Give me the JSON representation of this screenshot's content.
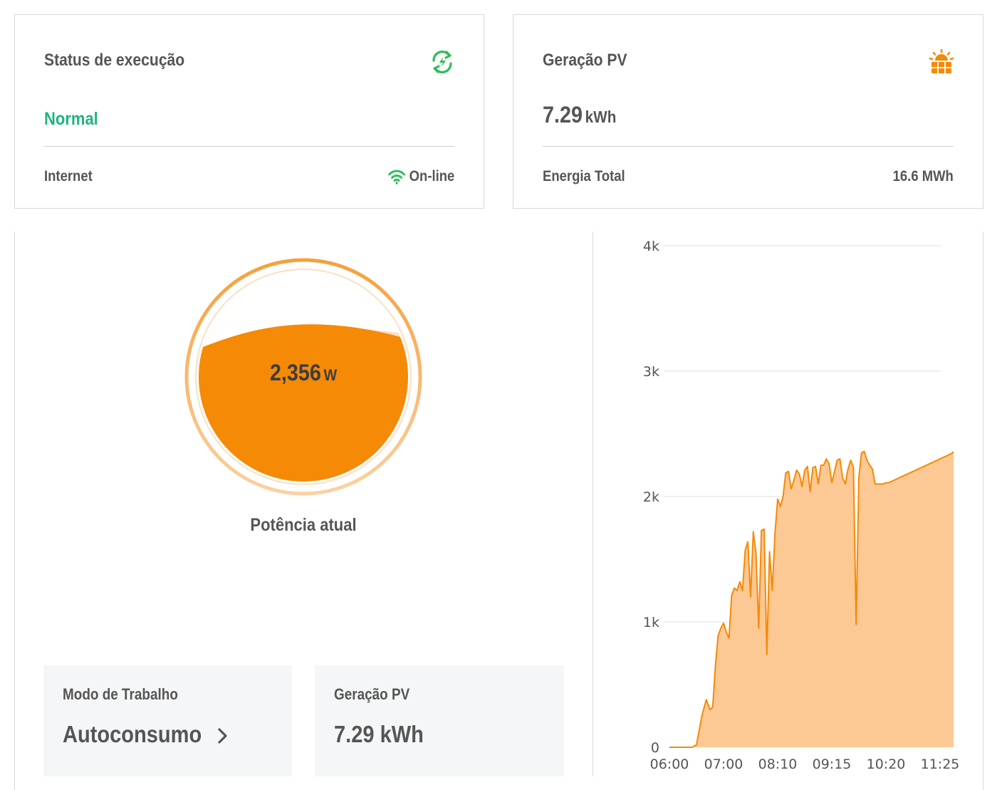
{
  "status_card": {
    "title": "Status de execução",
    "icon": "refresh-sync-icon",
    "status": "Normal",
    "internet_label": "Internet",
    "internet_icon": "wifi-icon",
    "internet_value": "On-line",
    "colors": {
      "status": "#1fb37e",
      "icon": "#2ebd59"
    }
  },
  "pv_card": {
    "title": "Geração PV",
    "icon": "solar-panel-icon",
    "value": "7.29",
    "unit": "kWh",
    "total_label": "Energia Total",
    "total_value": "16.6 MWh",
    "colors": {
      "icon": "#f58a07"
    }
  },
  "gauge": {
    "value": "2,356",
    "unit": "W",
    "label": "Potência atual",
    "fill_fraction": 0.72,
    "colors": {
      "fill": "#f58a07",
      "ring": "#f7b062"
    }
  },
  "tiles": [
    {
      "label": "Modo de Trabalho",
      "value": "Autoconsumo",
      "icon": "chevron-right-icon"
    },
    {
      "label": "Geração PV",
      "value": "7.29 kWh"
    }
  ],
  "chart_data": {
    "type": "area",
    "yticks": [
      "0",
      "1k",
      "2k",
      "3k",
      "4k"
    ],
    "ylim": [
      0,
      4000
    ],
    "xticks": [
      "06:00",
      "07:00",
      "08:10",
      "09:15",
      "10:20",
      "11:25"
    ],
    "colors": {
      "line": "#f58a07",
      "fill": "#fcc894",
      "grid": "#e2e2e2"
    },
    "series": [
      {
        "x": [
          0,
          0.05,
          0.2,
          0.35,
          0.42,
          0.5,
          0.6,
          0.68,
          0.75,
          0.8,
          0.85,
          0.9,
          0.95,
          1.0,
          1.05,
          1.1,
          1.15,
          1.2,
          1.25,
          1.3,
          1.35,
          1.4,
          1.45,
          1.5,
          1.55,
          1.6,
          1.65,
          1.7,
          1.75,
          1.8,
          1.85,
          1.9,
          1.95,
          2.0,
          2.05,
          2.1,
          2.15,
          2.2,
          2.25,
          2.3,
          2.35,
          2.4,
          2.45,
          2.5,
          2.55,
          2.6,
          2.65,
          2.7,
          2.75,
          2.8,
          2.85,
          2.9,
          2.95,
          3.0,
          3.05,
          3.1,
          3.15,
          3.2,
          3.25,
          3.3,
          3.35,
          3.4,
          3.45,
          3.5,
          3.55,
          3.6,
          3.65,
          3.7,
          3.75,
          3.8,
          3.85,
          3.9,
          3.95,
          4.0,
          4.05,
          4.1,
          4.15,
          4.2,
          4.25,
          4.3,
          4.35,
          4.4,
          4.45,
          4.5,
          4.55,
          4.6,
          4.65,
          4.7,
          4.75,
          4.8,
          4.85,
          4.9,
          4.95,
          5.0,
          5.05,
          5.1,
          5.15,
          5.2,
          5.25
        ],
        "y": [
          0,
          0,
          0,
          0,
          0,
          20,
          250,
          380,
          300,
          320,
          650,
          890,
          950,
          990,
          920,
          870,
          1210,
          1270,
          1250,
          1320,
          1250,
          1570,
          1640,
          1200,
          1720,
          1550,
          950,
          1730,
          1740,
          740,
          1560,
          1250,
          1700,
          1980,
          1920,
          2000,
          2190,
          2200,
          2060,
          2130,
          2210,
          2180,
          2080,
          2210,
          2240,
          2040,
          2230,
          2240,
          2100,
          2250,
          2250,
          2300,
          2260,
          2110,
          2200,
          2290,
          2300,
          2150,
          2100,
          2220,
          2290,
          2230,
          980,
          2150,
          2350,
          2360,
          2290,
          2250,
          2220,
          2100,
          2100,
          2100,
          2100,
          2110,
          2110,
          2120,
          2130,
          2140,
          2150,
          2160,
          2170,
          2180,
          2190,
          2200,
          2210,
          2220,
          2230,
          2240,
          2250,
          2260,
          2270,
          2280,
          2290,
          2300,
          2310,
          2320,
          2330,
          2340,
          2356
        ]
      }
    ]
  }
}
